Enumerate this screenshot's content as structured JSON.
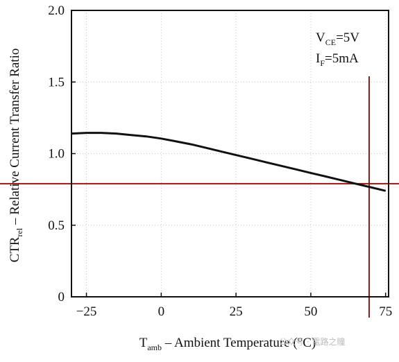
{
  "chart_data": {
    "type": "line",
    "title": "",
    "xlabel": {
      "main": "T",
      "sub": "amb",
      "rest": " – Ambient Temperature (°C)"
    },
    "ylabel": {
      "main": "CTR",
      "sub": "rel",
      "rest": " – Relative Current Transfer Ratio"
    },
    "xlim": [
      -30,
      76
    ],
    "ylim": [
      0,
      2.0
    ],
    "xticks": [
      -25,
      0,
      25,
      50,
      75
    ],
    "xtick_labels": [
      "−25",
      "0",
      "25",
      "50",
      "75"
    ],
    "yticks": [
      0,
      0.5,
      1.0,
      1.5,
      2.0
    ],
    "ytick_labels": [
      "0",
      "0.5",
      "1.0",
      "1.5",
      "2.0"
    ],
    "grid": true,
    "series": [
      {
        "x": [
          -30,
          -25,
          -20,
          -15,
          -10,
          -5,
          0,
          5,
          10,
          15,
          20,
          25,
          30,
          35,
          40,
          45,
          50,
          55,
          60,
          65,
          70,
          75
        ],
        "y": [
          1.14,
          1.145,
          1.145,
          1.14,
          1.13,
          1.12,
          1.105,
          1.085,
          1.065,
          1.04,
          1.015,
          0.99,
          0.965,
          0.94,
          0.915,
          0.89,
          0.865,
          0.84,
          0.815,
          0.79,
          0.765,
          0.74
        ]
      }
    ],
    "reference_lines": {
      "horizontal_y": 0.79,
      "vertical_x": 69.5,
      "color": "#8b1a1a"
    },
    "annotations": [
      {
        "main": "V",
        "sub": "CE",
        "rest": "=5V"
      },
      {
        "main": "I",
        "sub": "F",
        "rest": "=5mA"
      }
    ],
    "watermark": "公众号 · 電路之瞳"
  }
}
